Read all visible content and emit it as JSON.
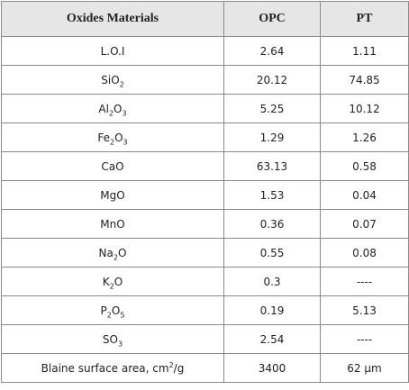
{
  "table": {
    "header": [
      "Oxides Materials",
      "OPC",
      "PT"
    ],
    "rows": [
      [
        [
          "L.O.I"
        ],
        "2.64",
        "1.11"
      ],
      [
        [
          "SiO",
          {
            "sub": "2"
          }
        ],
        "20.12",
        "74.85"
      ],
      [
        [
          "Al",
          {
            "sub": "2"
          },
          "O",
          {
            "sub": "3"
          }
        ],
        "5.25",
        "10.12"
      ],
      [
        [
          "Fe",
          {
            "sub": "2"
          },
          "O",
          {
            "sub": "3"
          }
        ],
        "1.29",
        "1.26"
      ],
      [
        [
          "CaO"
        ],
        "63.13",
        "0.58"
      ],
      [
        [
          "MgO"
        ],
        "1.53",
        "0.04"
      ],
      [
        [
          "MnO"
        ],
        "0.36",
        "0.07"
      ],
      [
        [
          "Na",
          {
            "sub": "2"
          },
          "O"
        ],
        "0.55",
        "0.08"
      ],
      [
        [
          "K",
          {
            "sub": "2"
          },
          "O"
        ],
        "0.3",
        "----"
      ],
      [
        [
          "P",
          {
            "sub": "2"
          },
          "O",
          {
            "sub": "5"
          }
        ],
        "0.19",
        "5.13"
      ],
      [
        [
          "SO",
          {
            "sub": "3"
          }
        ],
        "2.54",
        "----"
      ],
      [
        [
          "Blaine surface area, cm",
          {
            "sup": "2"
          },
          "/g"
        ],
        "3400",
        "62 µm"
      ]
    ]
  }
}
